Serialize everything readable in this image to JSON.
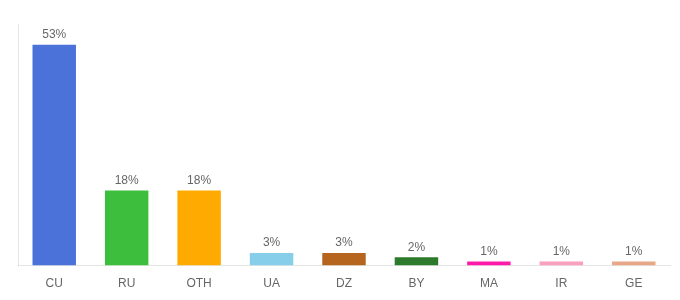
{
  "chart_data": {
    "type": "bar",
    "categories": [
      "CU",
      "RU",
      "OTH",
      "UA",
      "DZ",
      "BY",
      "MA",
      "IR",
      "GE"
    ],
    "values": [
      53,
      18,
      18,
      3,
      3,
      2,
      1,
      1,
      1
    ],
    "value_labels": [
      "53%",
      "18%",
      "18%",
      "3%",
      "3%",
      "2%",
      "1%",
      "1%",
      "1%"
    ],
    "colors": [
      "#4a72d9",
      "#3dbf3d",
      "#ffaa00",
      "#87ceeb",
      "#b5651d",
      "#2d7a2d",
      "#ff1aaa",
      "#f9a0c0",
      "#e8a888"
    ],
    "ylim": [
      0,
      58
    ],
    "grid": false,
    "data_labels": true,
    "tick_labels": "x"
  }
}
